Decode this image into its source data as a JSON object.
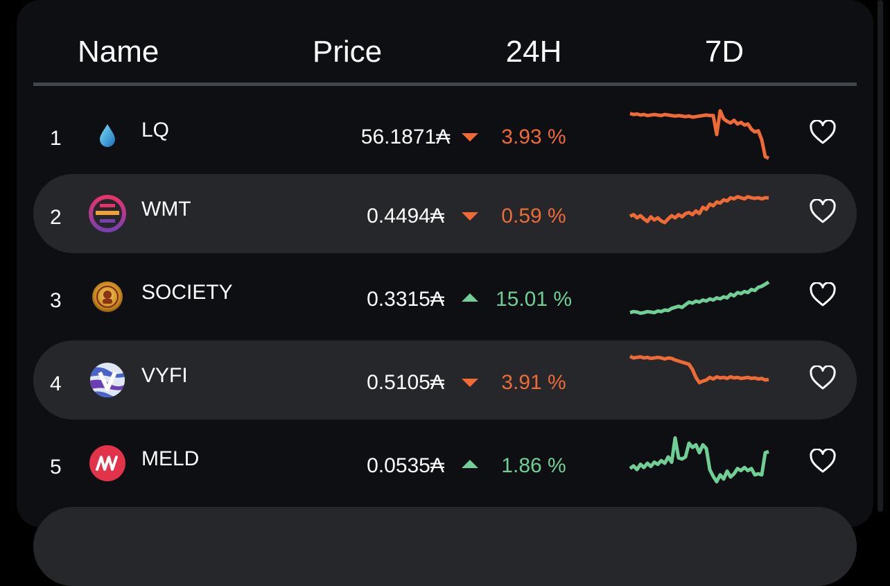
{
  "header": {
    "name_label": "Name",
    "price_label": "Price",
    "change_label": "24H",
    "week_label": "7D"
  },
  "colors": {
    "down": "#ef6a35",
    "up": "#6fcf97",
    "row_alt": "#25272a"
  },
  "rows": [
    {
      "rank": "1",
      "ticker": "LQ",
      "price": "56.1871₳",
      "change": "3.93 %",
      "direction": "down",
      "icon": "droplet-icon",
      "spark": [
        0.9,
        0.88,
        0.89,
        0.87,
        0.88,
        0.86,
        0.87,
        0.88,
        0.87,
        0.86,
        0.88,
        0.87,
        0.86,
        0.85,
        0.86,
        0.85,
        0.84,
        0.85,
        0.83,
        0.84,
        0.85,
        0.86,
        0.87,
        0.86,
        0.86,
        0.5,
        0.95,
        0.8,
        0.75,
        0.72,
        0.77,
        0.7,
        0.73,
        0.68,
        0.7,
        0.6,
        0.55,
        0.57,
        0.4,
        0.08,
        0.05
      ]
    },
    {
      "rank": "2",
      "ticker": "WMT",
      "price": "0.4494₳",
      "change": "0.59 %",
      "direction": "down",
      "icon": "wmt-logo-icon",
      "spark": [
        0.45,
        0.48,
        0.42,
        0.46,
        0.4,
        0.35,
        0.44,
        0.38,
        0.42,
        0.36,
        0.33,
        0.4,
        0.46,
        0.42,
        0.48,
        0.44,
        0.5,
        0.52,
        0.48,
        0.55,
        0.5,
        0.62,
        0.58,
        0.68,
        0.65,
        0.72,
        0.7,
        0.76,
        0.74,
        0.8,
        0.78,
        0.82,
        0.8,
        0.78,
        0.82,
        0.8,
        0.79,
        0.8,
        0.78,
        0.8,
        0.8
      ]
    },
    {
      "rank": "3",
      "ticker": "SOCIETY",
      "price": "0.3315₳",
      "change": "15.01 %",
      "direction": "up",
      "icon": "society-coin-icon",
      "spark": [
        0.2,
        0.22,
        0.21,
        0.19,
        0.2,
        0.22,
        0.21,
        0.2,
        0.23,
        0.22,
        0.25,
        0.24,
        0.28,
        0.3,
        0.32,
        0.3,
        0.35,
        0.4,
        0.38,
        0.42,
        0.4,
        0.44,
        0.42,
        0.46,
        0.44,
        0.48,
        0.46,
        0.5,
        0.48,
        0.55,
        0.52,
        0.58,
        0.56,
        0.6,
        0.58,
        0.64,
        0.62,
        0.68,
        0.7,
        0.74,
        0.78
      ]
    },
    {
      "rank": "4",
      "ticker": "VYFI",
      "price": "0.5105₳",
      "change": "3.91 %",
      "direction": "down",
      "icon": "vyfi-logo-icon",
      "spark": [
        0.95,
        0.92,
        0.93,
        0.94,
        0.92,
        0.93,
        0.91,
        0.92,
        0.93,
        0.92,
        0.9,
        0.92,
        0.91,
        0.88,
        0.86,
        0.84,
        0.82,
        0.8,
        0.7,
        0.55,
        0.45,
        0.48,
        0.5,
        0.55,
        0.52,
        0.56,
        0.54,
        0.55,
        0.53,
        0.56,
        0.54,
        0.55,
        0.53,
        0.54,
        0.55,
        0.53,
        0.54,
        0.52,
        0.53,
        0.5,
        0.51
      ]
    },
    {
      "rank": "5",
      "ticker": "MELD",
      "price": "0.0535₳",
      "change": "1.86 %",
      "direction": "up",
      "icon": "meld-logo-icon",
      "spark": [
        0.4,
        0.45,
        0.38,
        0.48,
        0.42,
        0.5,
        0.44,
        0.52,
        0.48,
        0.55,
        0.5,
        0.62,
        0.52,
        0.98,
        0.6,
        0.58,
        0.62,
        0.88,
        0.8,
        0.85,
        0.7,
        0.85,
        0.78,
        0.38,
        0.25,
        0.15,
        0.28,
        0.2,
        0.35,
        0.24,
        0.3,
        0.4,
        0.36,
        0.42,
        0.36,
        0.4,
        0.28,
        0.3,
        0.28,
        0.7,
        0.72
      ]
    }
  ]
}
